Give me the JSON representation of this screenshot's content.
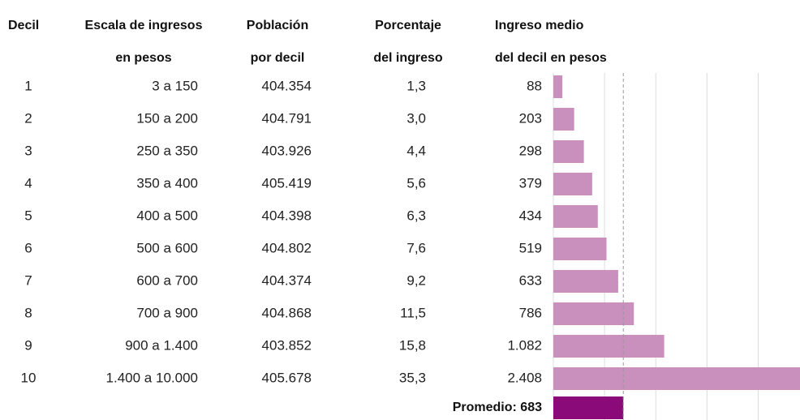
{
  "chart_data": {
    "type": "bar",
    "orientation": "horizontal",
    "headers": [
      [
        "Decil"
      ],
      [
        "Escala de ingresos",
        "en pesos"
      ],
      [
        "Población",
        "por decil"
      ],
      [
        "Porcentaje",
        "del ingreso"
      ],
      [
        "Ingreso medio",
        "del decil en pesos"
      ]
    ],
    "rows": [
      [
        "1",
        "3 a 150",
        "404.354",
        "1,3"
      ],
      [
        "2",
        "150 a 200",
        "404.791",
        "3,0"
      ],
      [
        "3",
        "250 a 350",
        "403.926",
        "4,4"
      ],
      [
        "4",
        "350 a 400",
        "405.419",
        "5,6"
      ],
      [
        "5",
        "400 a 500",
        "404.398",
        "6,3"
      ],
      [
        "6",
        "500 a 600",
        "404.802",
        "7,6"
      ],
      [
        "7",
        "600 a 700",
        "404.374",
        "9,2"
      ],
      [
        "8",
        "700 a 900",
        "404.868",
        "11,5"
      ],
      [
        "9",
        "900 a 1.400",
        "403.852",
        "15,8"
      ],
      [
        "10",
        "1.400 a 10.000",
        "405.678",
        "35,3"
      ]
    ],
    "values": [
      88,
      203,
      298,
      379,
      434,
      519,
      633,
      786,
      1082,
      2408
    ],
    "value_labels": [
      "88",
      "203",
      "298",
      "379",
      "434",
      "519",
      "633",
      "786",
      "1.082",
      "2.408"
    ],
    "color": "#c98fbd",
    "average": 683,
    "average_label": "Promedio: 683",
    "average_color": "#8b0a7a",
    "xlim": [
      0,
      2408
    ],
    "xticks": [
      0,
      500,
      1000,
      1500,
      2000
    ],
    "grid": true
  }
}
